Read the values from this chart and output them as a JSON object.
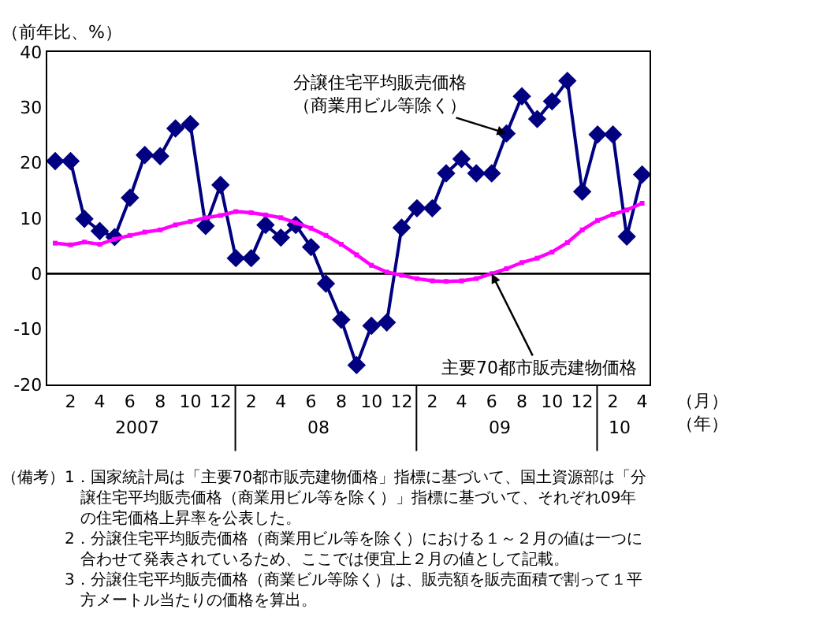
{
  "chart_data": {
    "type": "line",
    "ylabel": "（前年比、%）",
    "xlabel": "（月）（年）",
    "x": [
      "2007-01",
      "2007-02",
      "2007-03",
      "2007-04",
      "2007-05",
      "2007-06",
      "2007-07",
      "2007-08",
      "2007-09",
      "2007-10",
      "2007-11",
      "2007-12",
      "2008-01",
      "2008-02",
      "2008-03",
      "2008-04",
      "2008-05",
      "2008-06",
      "2008-07",
      "2008-08",
      "2008-09",
      "2008-10",
      "2008-11",
      "2008-12",
      "2009-01",
      "2009-02",
      "2009-03",
      "2009-04",
      "2009-05",
      "2009-06",
      "2009-07",
      "2009-08",
      "2009-09",
      "2009-10",
      "2009-11",
      "2009-12",
      "2010-01",
      "2010-02",
      "2010-03",
      "2010-04"
    ],
    "series": [
      {
        "name": "分譲住宅平均販売価格（商業用ビル等除く）",
        "color": "#000080",
        "marker": "diamond",
        "values": [
          20.3,
          20.3,
          9.9,
          7.7,
          6.6,
          13.7,
          21.4,
          21.2,
          26.2,
          27.0,
          8.6,
          16.0,
          2.8,
          2.8,
          8.8,
          6.5,
          8.8,
          4.8,
          -1.8,
          -8.3,
          -16.5,
          -9.4,
          -8.8,
          8.3,
          11.8,
          11.8,
          18.1,
          20.7,
          18.1,
          18.1,
          25.3,
          32.0,
          27.9,
          31.1,
          34.8,
          14.8,
          25.1,
          25.1,
          6.7,
          17.9
        ]
      },
      {
        "name": "主要70都市販売建物価格",
        "color": "#ff00ff",
        "marker": "square",
        "values": [
          5.5,
          5.2,
          5.7,
          5.3,
          6.2,
          6.9,
          7.5,
          7.9,
          8.8,
          9.4,
          10.1,
          10.5,
          11.2,
          11.0,
          10.6,
          10.1,
          9.2,
          8.2,
          6.9,
          5.3,
          3.4,
          1.5,
          0.3,
          -0.3,
          -0.9,
          -1.3,
          -1.4,
          -1.3,
          -0.9,
          0.0,
          0.9,
          2.0,
          2.8,
          3.9,
          5.6,
          7.9,
          9.6,
          10.7,
          11.5,
          12.7
        ]
      }
    ],
    "xlim": [
      "2006-12-16",
      "2010-04-16"
    ],
    "xticks": [
      {
        "value": "2007-02",
        "label": "2"
      },
      {
        "value": "2007-04",
        "label": "4"
      },
      {
        "value": "2007-06",
        "label": "6"
      },
      {
        "value": "2007-08",
        "label": "8"
      },
      {
        "value": "2007-10",
        "label": "10"
      },
      {
        "value": "2007-12",
        "label": "12"
      },
      {
        "value": "2008-02",
        "label": "2"
      },
      {
        "value": "2008-04",
        "label": "4"
      },
      {
        "value": "2008-06",
        "label": "6"
      },
      {
        "value": "2008-08",
        "label": "8"
      },
      {
        "value": "2008-10",
        "label": "10"
      },
      {
        "value": "2008-12",
        "label": "12"
      },
      {
        "value": "2009-02",
        "label": "2"
      },
      {
        "value": "2009-04",
        "label": "4"
      },
      {
        "value": "2009-06",
        "label": "6"
      },
      {
        "value": "2009-08",
        "label": "8"
      },
      {
        "value": "2009-10",
        "label": "10"
      },
      {
        "value": "2009-12",
        "label": "12"
      },
      {
        "value": "2010-02",
        "label": "2"
      },
      {
        "value": "2010-04",
        "label": "4"
      }
    ],
    "ylim": [
      -20,
      40
    ],
    "yticks": [
      -20,
      -10,
      0,
      10,
      20,
      30,
      40
    ],
    "ref_lines": [
      {
        "axis": "y",
        "value": 0,
        "color": "#000000"
      }
    ],
    "grid": false,
    "legend": false,
    "annotations": [
      "2007",
      "08",
      "09",
      "10",
      "（備考）",
      "1．国家統計局は「主要70都市販売建物価格」指標に基づいて、国土資源部は「分譲住宅平均販売価格（商業用ビル等を除く）」指標に基づいて、それぞれ09年の住宅価格上昇率を公表した。",
      "2．分譲住宅平均販売価格（商業用ビル等を除く）における１～２月の値は一つに合わせて発表されているため、ここでは便宜上２月の値として記載。",
      "3．分譲住宅平均販売価格（商業ビル等除く）は、販売額を販売面積で割って１平方メートル当たりの価格を算出。"
    ]
  }
}
